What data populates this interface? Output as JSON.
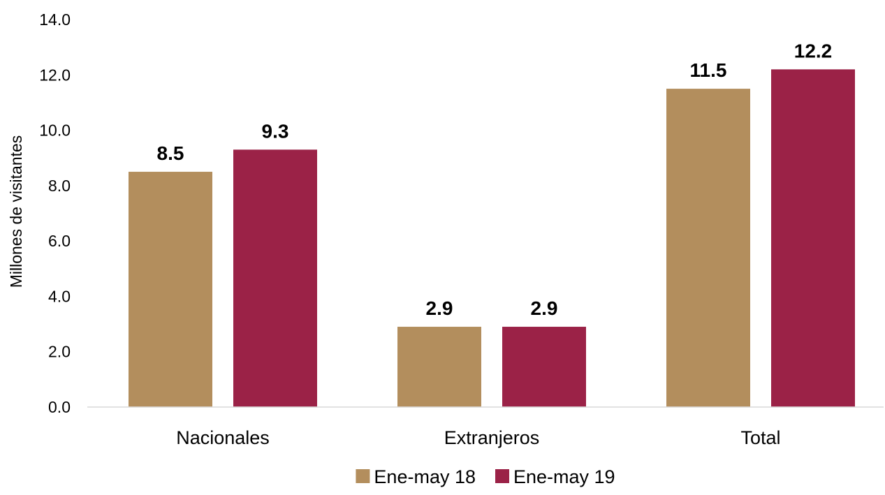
{
  "chart_data": {
    "type": "bar",
    "categories": [
      "Nacionales",
      "Extranjeros",
      "Total"
    ],
    "series": [
      {
        "name": "Ene-may 18",
        "color": "#B38E5D",
        "values": [
          8.5,
          2.9,
          11.5
        ]
      },
      {
        "name": "Ene-may 19",
        "color": "#9B2247",
        "values": [
          9.3,
          2.9,
          12.2
        ]
      }
    ],
    "title": "",
    "xlabel": "",
    "ylabel": "Millones de visitantes",
    "ylim": [
      0,
      14
    ],
    "yticks": [
      0,
      2,
      4,
      6,
      8,
      10,
      12,
      14
    ],
    "ytick_labels": [
      "0.0",
      "2.0",
      "4.0",
      "6.0",
      "8.0",
      "10.0",
      "12.0",
      "14.0"
    ],
    "value_labels": [
      [
        "8.5",
        "2.9",
        "11.5"
      ],
      [
        "9.3",
        "2.9",
        "12.2"
      ]
    ],
    "grid": false,
    "legend": "bottom-center"
  }
}
